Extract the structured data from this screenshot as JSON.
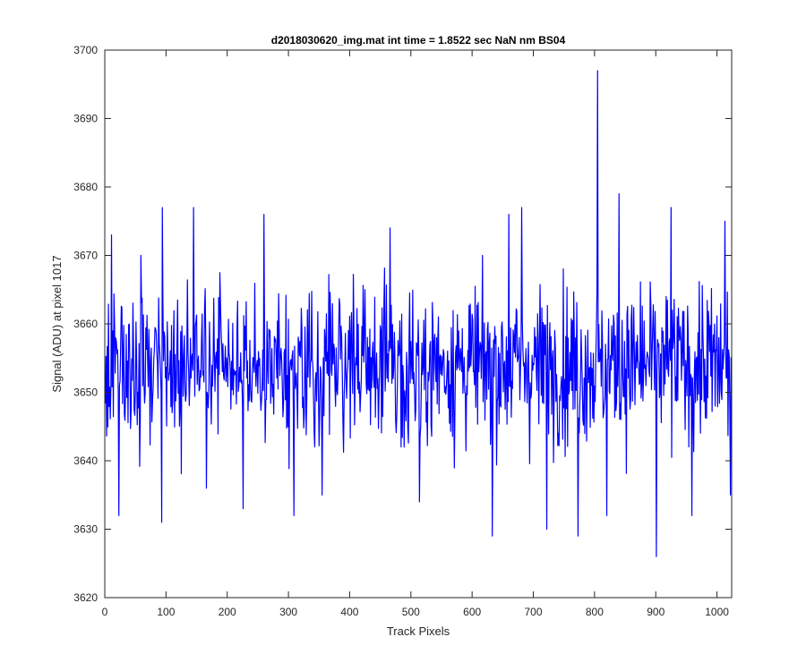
{
  "chart_data": {
    "type": "line",
    "title": "d2018030620_img.mat int time = 1.8522 sec  NaN nm BS04",
    "xlabel": "Track Pixels",
    "ylabel": "Signal (ADU) at pixel 1017",
    "xlim": [
      0,
      1024
    ],
    "ylim": [
      3620,
      3700
    ],
    "xticks": [
      0,
      100,
      200,
      300,
      400,
      500,
      600,
      700,
      800,
      900,
      1000
    ],
    "yticks": [
      3620,
      3630,
      3640,
      3650,
      3660,
      3670,
      3680,
      3690,
      3700
    ],
    "grid": false,
    "legend": "none",
    "series": [
      {
        "color": "#0000ff",
        "x_start": 1,
        "x_step": 1,
        "n_points": 1024,
        "mean": 3654,
        "features": [
          {
            "x": 11,
            "y": 3673
          },
          {
            "x": 23,
            "y": 3632
          },
          {
            "x": 59,
            "y": 3670
          },
          {
            "x": 93,
            "y": 3631
          },
          {
            "x": 94,
            "y": 3677
          },
          {
            "x": 145,
            "y": 3677
          },
          {
            "x": 166,
            "y": 3636
          },
          {
            "x": 226,
            "y": 3633
          },
          {
            "x": 260,
            "y": 3676
          },
          {
            "x": 309,
            "y": 3632
          },
          {
            "x": 355,
            "y": 3635
          },
          {
            "x": 466,
            "y": 3674
          },
          {
            "x": 514,
            "y": 3634
          },
          {
            "x": 633,
            "y": 3629
          },
          {
            "x": 660,
            "y": 3676
          },
          {
            "x": 681,
            "y": 3677
          },
          {
            "x": 722,
            "y": 3630
          },
          {
            "x": 773,
            "y": 3629
          },
          {
            "x": 805,
            "y": 3697
          },
          {
            "x": 820,
            "y": 3632
          },
          {
            "x": 840,
            "y": 3679
          },
          {
            "x": 901,
            "y": 3626
          },
          {
            "x": 925,
            "y": 3677
          },
          {
            "x": 959,
            "y": 3632
          },
          {
            "x": 1013,
            "y": 3675
          },
          {
            "x": 1022,
            "y": 3635
          }
        ]
      }
    ]
  }
}
